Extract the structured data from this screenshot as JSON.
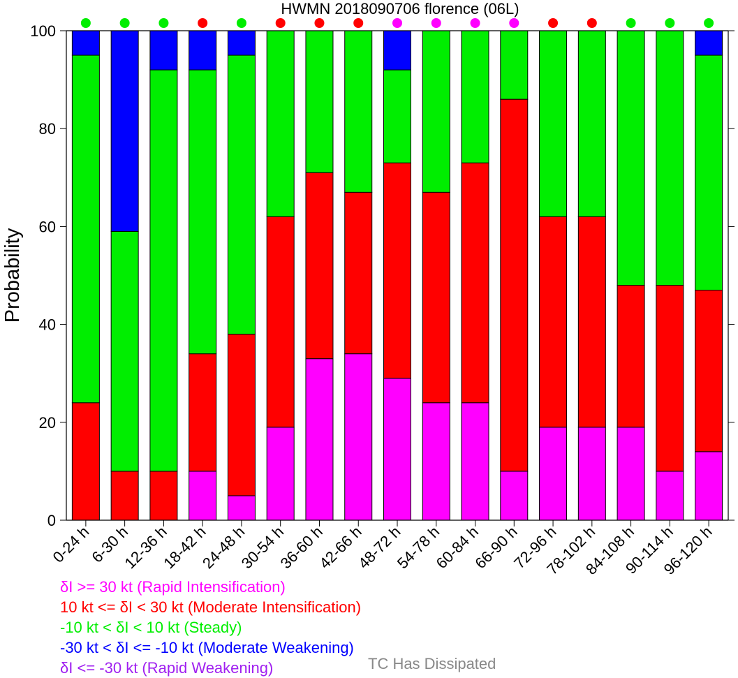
{
  "chart_data": {
    "type": "bar",
    "stacked": true,
    "title": "HWMN 2018090706 florence (06L)",
    "xlabel": "",
    "ylabel": "Probability",
    "ylim": [
      0,
      100
    ],
    "yticks": [
      0,
      20,
      40,
      60,
      80,
      100
    ],
    "grid": false,
    "categories": [
      "0-24 h",
      "6-30 h",
      "12-36 h",
      "18-42 h",
      "24-48 h",
      "30-54 h",
      "36-60 h",
      "42-66 h",
      "48-72 h",
      "54-78 h",
      "60-84 h",
      "66-90 h",
      "72-96 h",
      "78-102 h",
      "84-108 h",
      "90-114 h",
      "96-120 h"
    ],
    "series": [
      {
        "key": "ri",
        "color": "#ff00ff",
        "values": [
          0,
          0,
          0,
          10,
          5,
          19,
          33,
          34,
          29,
          24,
          24,
          10,
          19,
          19,
          19,
          10,
          14
        ]
      },
      {
        "key": "mi",
        "color": "#ff0000",
        "values": [
          24,
          10,
          10,
          24,
          33,
          43,
          38,
          33,
          44,
          43,
          49,
          76,
          43,
          43,
          29,
          38,
          33
        ]
      },
      {
        "key": "st",
        "color": "#00ee00",
        "values": [
          71,
          49,
          82,
          58,
          57,
          38,
          29,
          33,
          19,
          33,
          27,
          14,
          38,
          38,
          52,
          52,
          48
        ]
      },
      {
        "key": "mw",
        "color": "#0000ff",
        "values": [
          5,
          41,
          8,
          8,
          5,
          0,
          0,
          0,
          8,
          0,
          0,
          0,
          0,
          0,
          0,
          0,
          5
        ]
      },
      {
        "key": "rw",
        "color": "#a020f0",
        "values": [
          0,
          0,
          0,
          0,
          0,
          0,
          0,
          0,
          0,
          0,
          0,
          0,
          0,
          0,
          0,
          0,
          0
        ]
      }
    ],
    "most_likely_markers": [
      "#00ee00",
      "#00ee00",
      "#00ee00",
      "#ff0000",
      "#00ee00",
      "#ff0000",
      "#ff0000",
      "#ff0000",
      "#ff00ff",
      "#ff00ff",
      "#ff00ff",
      "#ff00ff",
      "#ff0000",
      "#ff0000",
      "#00ee00",
      "#00ee00",
      "#00ee00"
    ],
    "legend": [
      {
        "label": "δI >= 30 kt (Rapid Intensification)",
        "color": "#ff00ff"
      },
      {
        "label": "10 kt <= δI < 30 kt (Moderate Intensification)",
        "color": "#ff0000"
      },
      {
        "label": "-10 kt < δI < 10 kt (Steady)",
        "color": "#00ee00"
      },
      {
        "label": "-30 kt < δI <= -10 kt (Moderate Weakening)",
        "color": "#0000ff"
      },
      {
        "label": "δI <= -30 kt (Rapid Weakening)",
        "color": "#a020f0"
      }
    ],
    "dissipated_label": "TC Has Dissipated",
    "dissipated_color": "#888888"
  }
}
